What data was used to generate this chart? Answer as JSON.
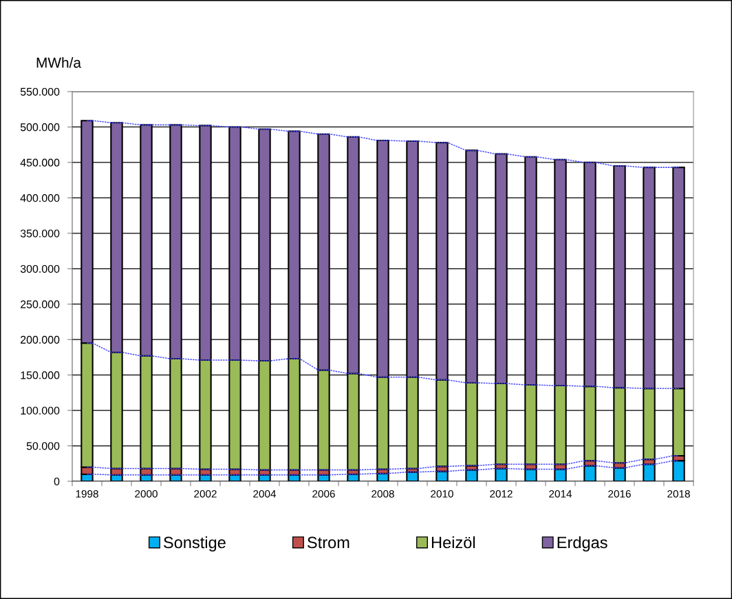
{
  "chart_data": {
    "type": "bar",
    "stacked": true,
    "ylabel": "MWh/a",
    "categories": [
      "1998",
      null,
      "2000",
      null,
      "2002",
      null,
      "2004",
      null,
      "2006",
      null,
      "2008",
      null,
      "2010",
      null,
      "2012",
      null,
      "2014",
      null,
      "2016",
      null,
      "2018"
    ],
    "series": [
      {
        "name": "Sonstige",
        "color": "#00b0f0",
        "values": [
          10000,
          9000,
          9000,
          9000,
          9000,
          9000,
          9000,
          9000,
          9000,
          10000,
          11000,
          13000,
          14000,
          16000,
          18000,
          17000,
          17000,
          22000,
          19000,
          24000,
          29000
        ]
      },
      {
        "name": "Strom",
        "color": "#c0504d",
        "values": [
          10000,
          9000,
          9000,
          9000,
          8000,
          8000,
          7000,
          7000,
          7000,
          6000,
          6000,
          5000,
          7000,
          6000,
          6000,
          7000,
          7000,
          7000,
          7000,
          7000,
          7000
        ]
      },
      {
        "name": "Heizöl",
        "color": "#9bbb59",
        "values": [
          175000,
          164000,
          159000,
          155000,
          154000,
          154000,
          154000,
          157000,
          141000,
          136000,
          130000,
          129000,
          122000,
          117000,
          114000,
          112000,
          111000,
          105000,
          106000,
          100000,
          95000
        ]
      },
      {
        "name": "Erdgas",
        "color": "#8064a2",
        "values": [
          314000,
          324000,
          326000,
          330000,
          331000,
          329000,
          327000,
          321000,
          333000,
          334000,
          334000,
          333000,
          335000,
          328000,
          324000,
          322000,
          319000,
          316000,
          313000,
          312000,
          312000
        ]
      },
      {
        "type": "line",
        "color": "#4a4aff",
        "values": [
          10000,
          9000,
          9000,
          9000,
          9000,
          9000,
          9000,
          9000,
          9000,
          10000,
          11000,
          13000,
          14000,
          16000,
          18000,
          17000,
          17000,
          22000,
          19000,
          24000,
          29000
        ]
      },
      {
        "type": "line",
        "color": "#4a4aff",
        "values": [
          20000,
          18000,
          18000,
          18000,
          17000,
          17000,
          16000,
          16000,
          16000,
          16000,
          17000,
          18000,
          21000,
          22000,
          24000,
          24000,
          24000,
          29000,
          26000,
          31000,
          36000
        ]
      },
      {
        "type": "line",
        "color": "#4a4aff",
        "values": [
          195000,
          182000,
          177000,
          173000,
          171000,
          171000,
          170000,
          173000,
          157000,
          152000,
          147000,
          147000,
          143000,
          139000,
          138000,
          136000,
          135000,
          134000,
          132000,
          131000,
          131000
        ]
      },
      {
        "type": "line",
        "color": "#4a4aff",
        "values": [
          509000,
          506000,
          503000,
          503000,
          502000,
          500000,
          497000,
          494000,
          490000,
          486000,
          481000,
          480000,
          478000,
          467000,
          462000,
          458000,
          454000,
          450000,
          445000,
          443000,
          443000
        ]
      }
    ],
    "ylim": [
      0,
      550000
    ],
    "yticks": [
      0,
      {
        "value": 50000,
        "label": "50.000"
      },
      {
        "value": 100000,
        "label": "100.000"
      },
      {
        "value": 150000,
        "label": "150.000"
      },
      {
        "value": 200000,
        "label": "200.000"
      },
      {
        "value": 250000,
        "label": "250.000"
      },
      {
        "value": 300000,
        "label": "300.000"
      },
      {
        "value": 350000,
        "label": "350.000"
      },
      {
        "value": 400000,
        "label": "400.000"
      },
      {
        "value": 450000,
        "label": "450.000"
      },
      {
        "value": 500000,
        "label": "500.000"
      },
      {
        "value": 550000,
        "label": "550.000"
      }
    ],
    "grid": "y",
    "legend": "bottom",
    "line_style": "dotted",
    "marker": "none"
  }
}
